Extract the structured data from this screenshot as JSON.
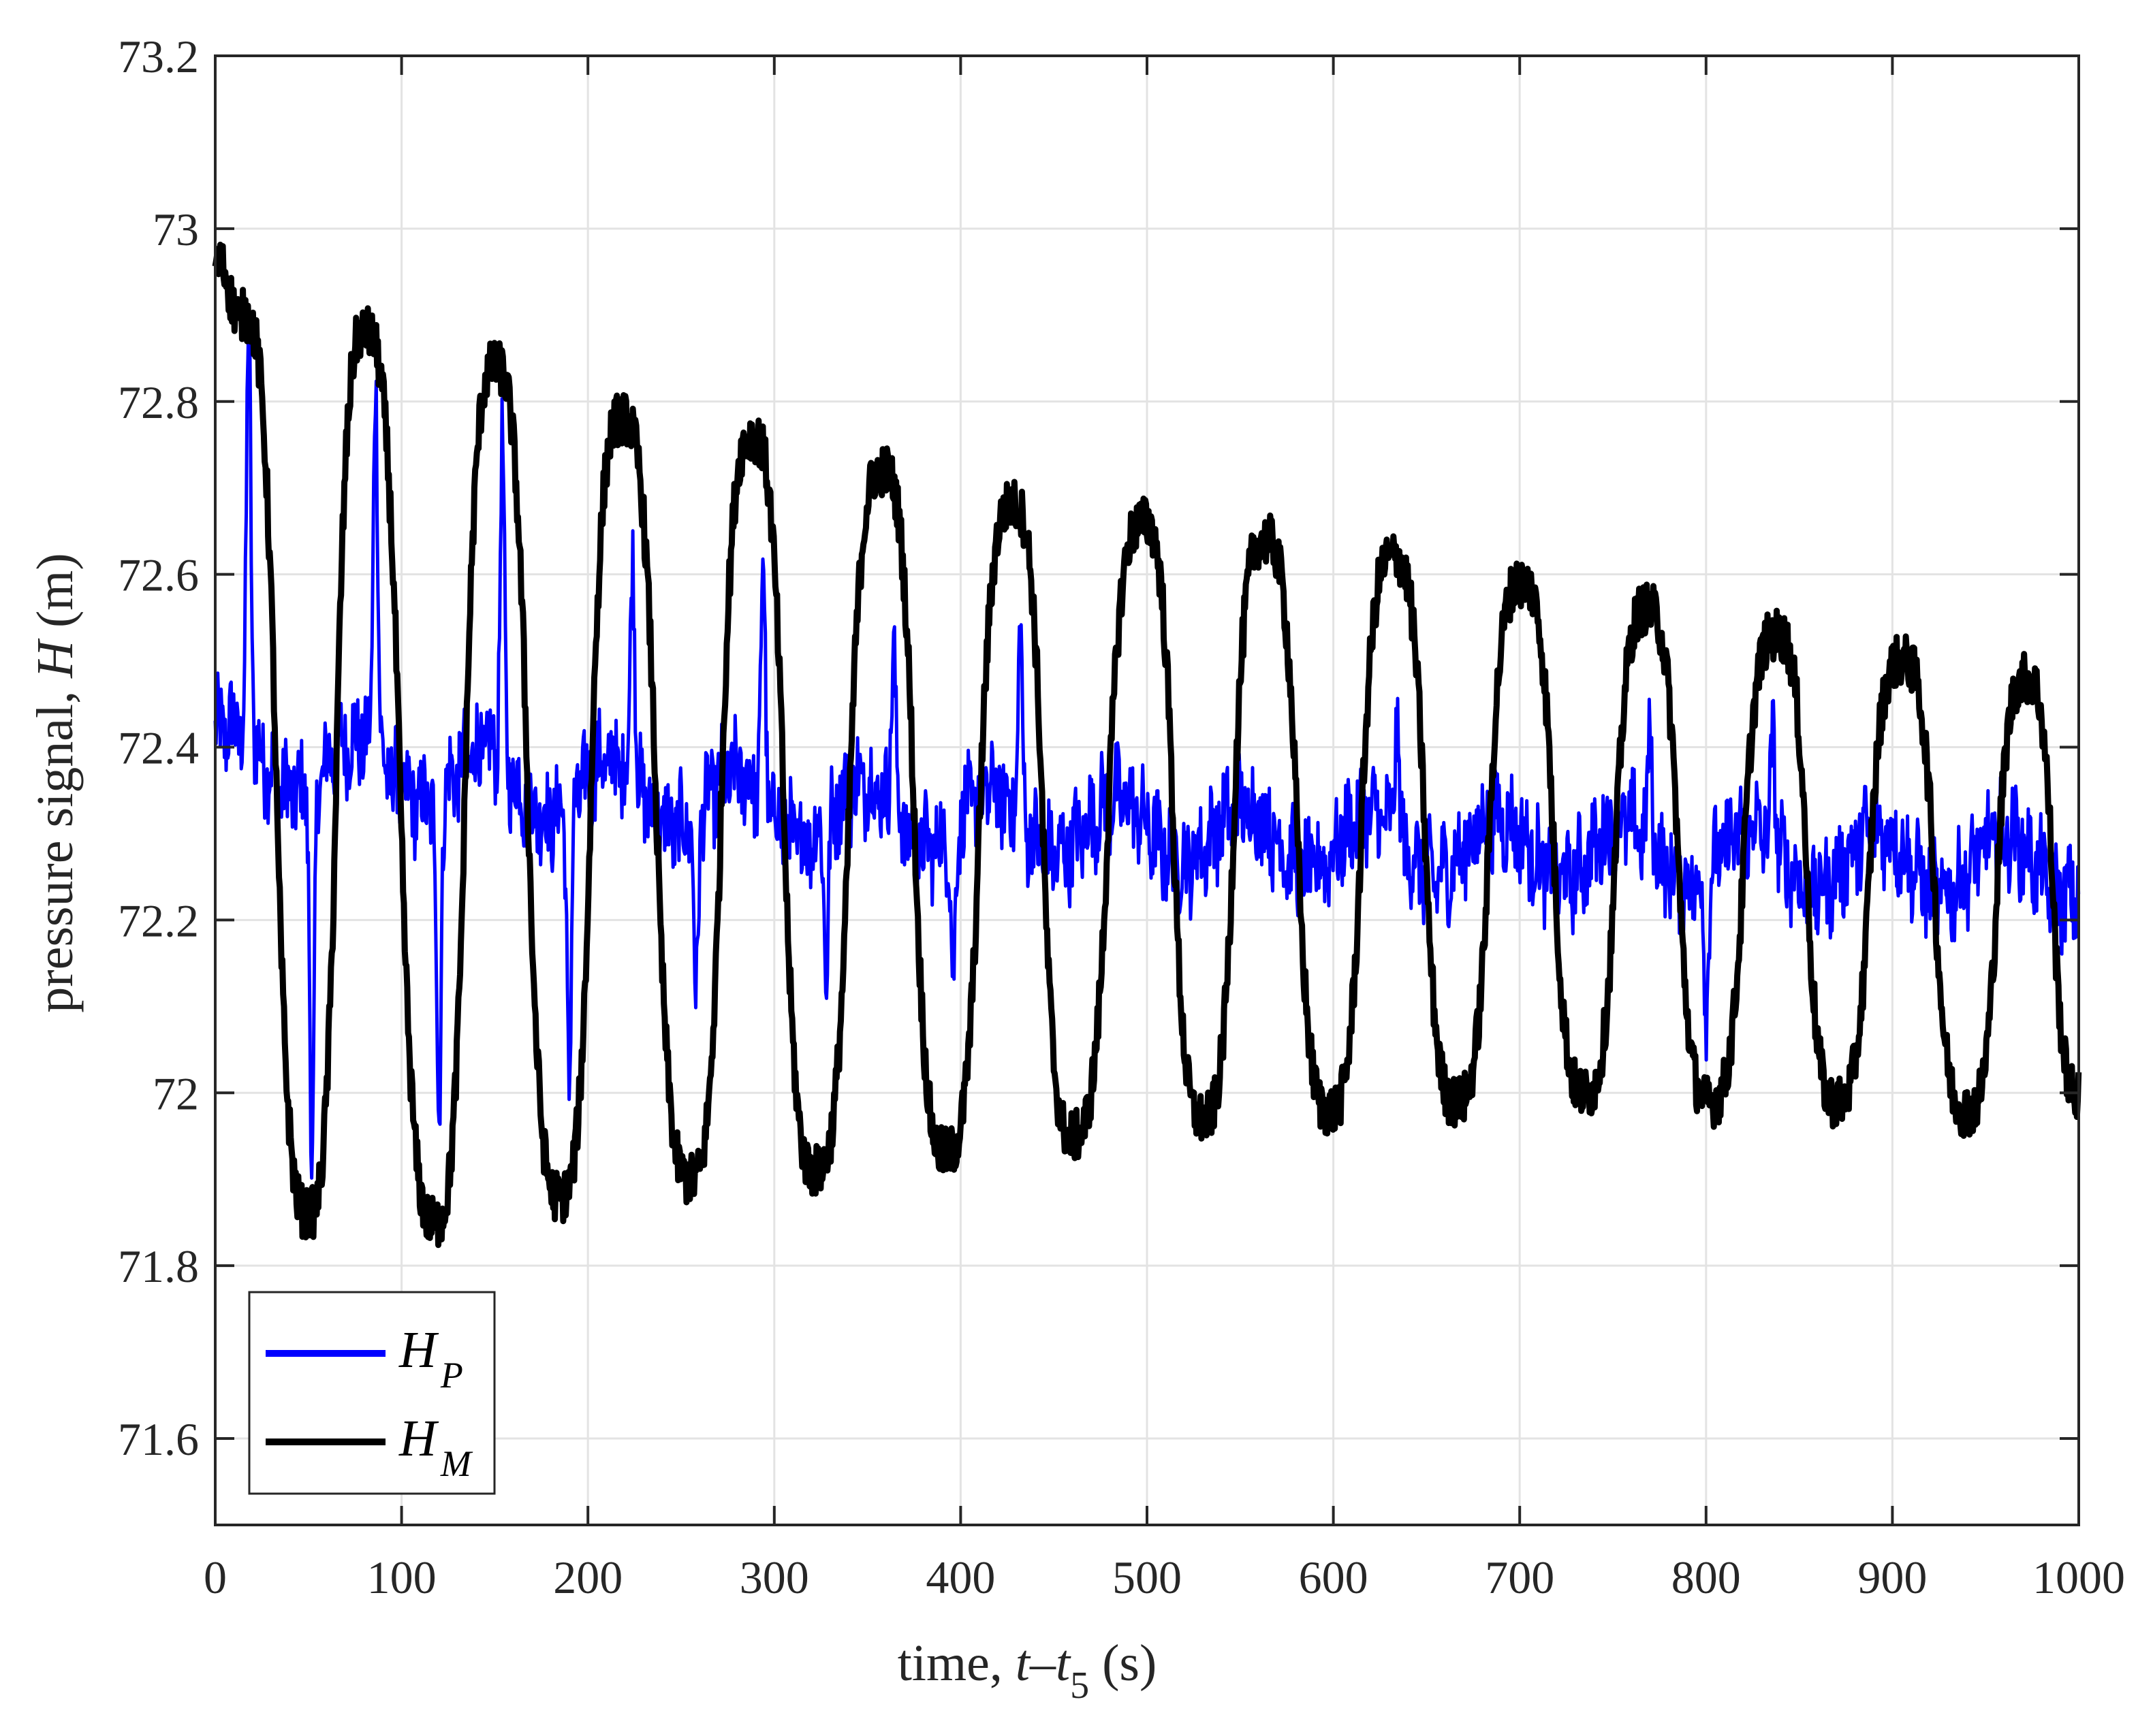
{
  "chart_data": {
    "type": "line",
    "xlabel": {
      "prefix": "time, ",
      "var1": "t",
      "dash": "–",
      "var2": "t",
      "sub": "5",
      "suffix": " (s)"
    },
    "ylabel": {
      "prefix": "pressure signal, ",
      "var": "H",
      "suffix": " (m)"
    },
    "xlim": [
      0,
      1000
    ],
    "ylim": [
      71.5,
      73.2
    ],
    "xticks": [
      0,
      100,
      200,
      300,
      400,
      500,
      600,
      700,
      800,
      900,
      1000
    ],
    "yticks": [
      71.6,
      71.8,
      72,
      72.2,
      72.4,
      72.6,
      72.8,
      73,
      73.2
    ],
    "xtick_labels": [
      "0",
      "100",
      "200",
      "300",
      "400",
      "500",
      "600",
      "700",
      "800",
      "900",
      "1000"
    ],
    "ytick_labels": [
      "71.6",
      "71.8",
      "72",
      "72.2",
      "72.4",
      "72.6",
      "72.8",
      "73",
      "73.2"
    ],
    "grid": true,
    "legend_position": "bottom-left",
    "series": [
      {
        "name": "H_P",
        "label_main": "H",
        "label_sub": "P",
        "color": "#0000ff",
        "description_points": {
          "x": [
            0,
            16,
            18,
            20,
            50,
            52,
            54,
            84,
            86,
            88,
            118,
            120,
            122,
            152,
            154,
            156,
            188,
            190,
            192,
            222,
            224,
            226,
            256,
            258,
            260,
            292,
            294,
            296,
            326,
            328,
            330,
            362,
            364,
            366,
            394,
            396,
            398,
            430,
            432,
            434,
            530,
            634,
            700,
            770,
            800,
            836,
            1000
          ],
          "y": [
            72.38,
            72.38,
            72.88,
            72.38,
            72.35,
            71.92,
            72.35,
            72.38,
            72.82,
            72.38,
            72.32,
            71.98,
            72.32,
            72.38,
            72.73,
            72.38,
            72.3,
            72.02,
            72.3,
            72.38,
            72.62,
            72.38,
            72.3,
            72.12,
            72.3,
            72.36,
            72.6,
            72.36,
            72.3,
            72.15,
            72.3,
            72.34,
            72.53,
            72.34,
            72.28,
            72.13,
            72.28,
            72.32,
            72.52,
            72.32,
            72.27,
            72.42,
            72.28,
            72.4,
            72.12,
            72.4,
            72.25
          ]
        },
        "center_trend": [
          [
            0,
            72.39
          ],
          [
            300,
            72.33
          ],
          [
            600,
            72.29
          ],
          [
            1000,
            72.26
          ]
        ],
        "oscillation_period": 68,
        "noise_amplitude": 0.05
      },
      {
        "name": "H_M",
        "label_main": "H",
        "label_sub": "M",
        "color": "#000000",
        "peaks": {
          "x": [
            0,
            15,
            80,
            150,
            218,
            288,
            358,
            428,
            498,
            563,
            632,
            701,
            768,
            838,
            905,
            972
          ],
          "y": [
            72.96,
            72.9,
            72.88,
            72.84,
            72.78,
            72.76,
            72.72,
            72.68,
            72.66,
            72.64,
            72.62,
            72.59,
            72.56,
            72.53,
            72.5,
            72.48
          ]
        },
        "troughs": {
          "x": [
            50,
            118,
            185,
            255,
            322,
            392,
            460,
            530,
            598,
            666,
            735,
            802,
            870,
            940
          ],
          "y": [
            71.86,
            71.85,
            71.88,
            71.9,
            71.91,
            71.93,
            71.95,
            71.97,
            71.98,
            71.99,
            72.0,
            71.99,
            71.99,
            71.98
          ]
        },
        "end_value": 72.0,
        "noise_amplitude": 0.03
      }
    ]
  }
}
